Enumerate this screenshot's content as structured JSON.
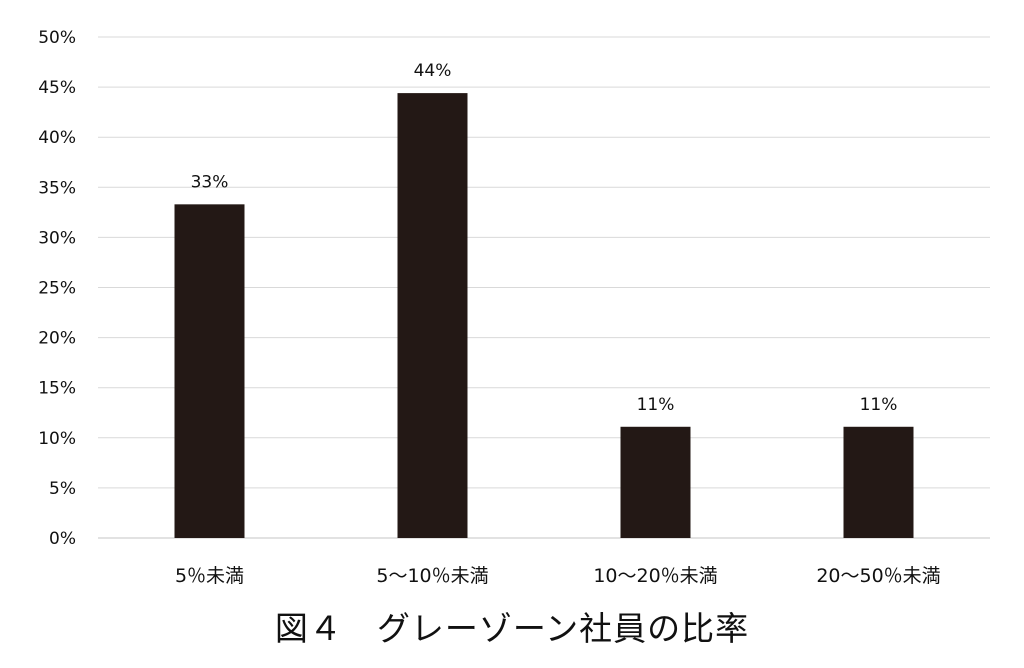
{
  "chart_data": {
    "type": "bar",
    "title": "図４　グレーゾーン社員の比率",
    "xlabel": "",
    "ylabel": "",
    "categories": [
      "5％未満",
      "5〜10％未満",
      "10〜20％未満",
      "20〜50％未満"
    ],
    "values": [
      33.3,
      44.4,
      11.1,
      11.1
    ],
    "data_labels": [
      "33%",
      "44%",
      "11%",
      "11%"
    ],
    "ylim": [
      0,
      50
    ],
    "y_ticks": [
      0,
      5,
      10,
      15,
      20,
      25,
      30,
      35,
      40,
      45,
      50
    ],
    "y_tick_labels": [
      "0%",
      "5%",
      "10%",
      "15%",
      "20%",
      "25%",
      "30%",
      "35%",
      "40%",
      "45%",
      "50%"
    ],
    "grid": true,
    "legend": "none",
    "colors": {
      "bar": "#231815",
      "grid": "#d9d9d9",
      "text": "#111111"
    }
  }
}
